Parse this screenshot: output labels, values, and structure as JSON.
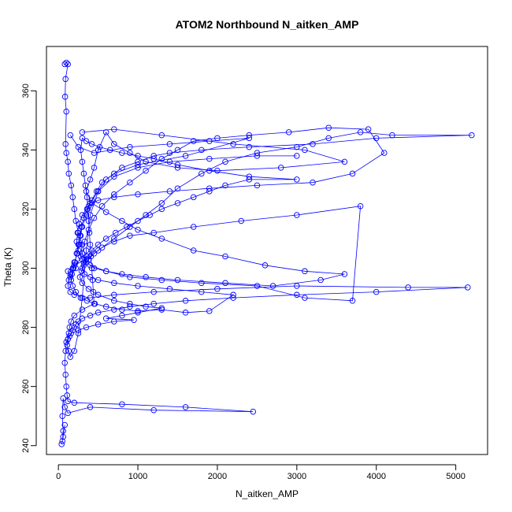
{
  "chart_data": {
    "type": "scatter",
    "title": "ATOM2 Northbound N_aitken_AMP",
    "xlabel": "N_aitken_AMP",
    "ylabel": "Theta (K)",
    "xlim": [
      -150,
      5400
    ],
    "ylim": [
      237,
      375
    ],
    "xticks": [
      0,
      1000,
      2000,
      3000,
      4000,
      5000
    ],
    "yticks": [
      240,
      260,
      280,
      300,
      320,
      340,
      360
    ],
    "grid": false,
    "legend": "none",
    "color": "#0000ff",
    "marker": "open-circle",
    "connected": true,
    "series": [
      {
        "points": [
          [
            80,
            369
          ],
          [
            100,
            369.5
          ],
          [
            120,
            369
          ],
          [
            90,
            364
          ],
          [
            85,
            358
          ],
          [
            100,
            353
          ],
          [
            90,
            342
          ],
          [
            100,
            339
          ],
          [
            120,
            336
          ],
          [
            130,
            332
          ],
          [
            160,
            328
          ],
          [
            180,
            324
          ],
          [
            200,
            320
          ],
          [
            220,
            316
          ],
          [
            250,
            312
          ],
          [
            300,
            308
          ],
          [
            280,
            304
          ],
          [
            220,
            300
          ],
          [
            150,
            297
          ],
          [
            120,
            299
          ],
          [
            200,
            301
          ],
          [
            350,
            303
          ],
          [
            500,
            306
          ],
          [
            700,
            310
          ],
          [
            900,
            314
          ],
          [
            1100,
            318
          ],
          [
            1300,
            322
          ],
          [
            1500,
            327
          ],
          [
            1800,
            332
          ],
          [
            2100,
            336
          ],
          [
            2500,
            339
          ],
          [
            3000,
            341
          ],
          [
            3400,
            344
          ],
          [
            3800,
            346
          ],
          [
            4200,
            345
          ],
          [
            5200,
            345
          ],
          [
            4000,
            344
          ],
          [
            3200,
            342
          ],
          [
            2400,
            341
          ],
          [
            1800,
            340
          ],
          [
            1400,
            339
          ],
          [
            1200,
            338
          ],
          [
            1000,
            336
          ],
          [
            800,
            334
          ],
          [
            600,
            330
          ],
          [
            500,
            326
          ],
          [
            400,
            322
          ],
          [
            350,
            318
          ],
          [
            300,
            314
          ],
          [
            280,
            311
          ],
          [
            260,
            308
          ],
          [
            240,
            305
          ],
          [
            200,
            302
          ],
          [
            180,
            300
          ],
          [
            150,
            298
          ],
          [
            130,
            296
          ],
          [
            120,
            294
          ],
          [
            150,
            292
          ],
          [
            200,
            291
          ],
          [
            400,
            290
          ],
          [
            700,
            291
          ],
          [
            1200,
            292
          ],
          [
            2000,
            293
          ],
          [
            3000,
            294
          ],
          [
            4400,
            293.5
          ],
          [
            5150,
            293.5
          ],
          [
            4000,
            292
          ],
          [
            3000,
            291
          ],
          [
            2200,
            290
          ],
          [
            1600,
            289
          ],
          [
            1200,
            288
          ],
          [
            900,
            287
          ],
          [
            700,
            286
          ],
          [
            500,
            285
          ],
          [
            400,
            284
          ],
          [
            300,
            283
          ],
          [
            250,
            282
          ],
          [
            220,
            281
          ],
          [
            200,
            280
          ],
          [
            180,
            279
          ],
          [
            160,
            278
          ],
          [
            140,
            277
          ],
          [
            120,
            276
          ],
          [
            100,
            275
          ],
          [
            90,
            272
          ],
          [
            80,
            268
          ],
          [
            90,
            264
          ],
          [
            100,
            260
          ],
          [
            110,
            257
          ],
          [
            120,
            255
          ],
          [
            200,
            254.5
          ],
          [
            800,
            254
          ],
          [
            1600,
            253
          ],
          [
            2450,
            251.5
          ],
          [
            1200,
            252
          ],
          [
            400,
            253
          ],
          [
            120,
            251
          ],
          [
            80,
            253
          ],
          [
            60,
            256
          ],
          [
            50,
            250
          ],
          [
            60,
            245
          ],
          [
            50,
            241.5
          ],
          [
            40,
            240.5
          ],
          [
            60,
            243
          ],
          [
            80,
            247
          ]
        ]
      },
      {
        "points": [
          [
            300,
            346
          ],
          [
            700,
            347
          ],
          [
            1300,
            345
          ],
          [
            2200,
            342
          ],
          [
            3100,
            340
          ],
          [
            3600,
            336
          ],
          [
            2800,
            334
          ],
          [
            2000,
            333
          ],
          [
            1500,
            334
          ],
          [
            1100,
            336
          ],
          [
            900,
            339
          ],
          [
            700,
            342
          ],
          [
            600,
            346
          ],
          [
            500,
            340
          ],
          [
            450,
            334
          ],
          [
            400,
            330
          ],
          [
            350,
            326
          ],
          [
            420,
            322
          ],
          [
            600,
            319
          ],
          [
            800,
            316
          ],
          [
            1000,
            313
          ],
          [
            1300,
            310
          ],
          [
            1700,
            306
          ],
          [
            2100,
            304
          ],
          [
            2600,
            301
          ],
          [
            3100,
            299
          ],
          [
            3600,
            298
          ],
          [
            3300,
            296
          ],
          [
            2700,
            294
          ],
          [
            2100,
            295
          ],
          [
            1500,
            296
          ],
          [
            1100,
            297
          ],
          [
            800,
            298
          ],
          [
            600,
            299
          ],
          [
            450,
            300
          ],
          [
            350,
            302
          ],
          [
            300,
            305
          ],
          [
            330,
            309
          ],
          [
            380,
            313
          ],
          [
            450,
            317
          ],
          [
            550,
            321
          ],
          [
            700,
            325
          ],
          [
            900,
            329
          ],
          [
            1100,
            333
          ],
          [
            1300,
            337
          ],
          [
            1500,
            340
          ],
          [
            1700,
            343
          ],
          [
            2000,
            344
          ],
          [
            2400,
            345
          ],
          [
            2900,
            346
          ],
          [
            3400,
            347.5
          ],
          [
            3900,
            347
          ],
          [
            4100,
            339
          ],
          [
            3700,
            332
          ],
          [
            3200,
            329
          ],
          [
            2500,
            328
          ],
          [
            1900,
            327
          ],
          [
            1400,
            326
          ],
          [
            1000,
            325
          ],
          [
            700,
            324
          ],
          [
            500,
            323
          ],
          [
            380,
            321
          ],
          [
            300,
            318
          ],
          [
            260,
            315
          ],
          [
            240,
            312
          ],
          [
            230,
            309
          ],
          [
            250,
            306
          ],
          [
            300,
            303
          ],
          [
            400,
            301
          ],
          [
            600,
            299
          ],
          [
            900,
            297
          ],
          [
            1300,
            296
          ],
          [
            1800,
            295
          ],
          [
            2500,
            294
          ],
          [
            3100,
            290
          ],
          [
            3700,
            289
          ],
          [
            3800,
            321
          ],
          [
            3000,
            318
          ],
          [
            2300,
            316
          ],
          [
            1700,
            314
          ],
          [
            1200,
            312
          ],
          [
            900,
            311
          ],
          [
            700,
            309
          ],
          [
            550,
            307
          ],
          [
            450,
            305
          ],
          [
            380,
            303
          ],
          [
            320,
            301
          ],
          [
            290,
            299
          ],
          [
            270,
            297
          ],
          [
            300,
            295
          ],
          [
            380,
            293
          ],
          [
            500,
            291
          ],
          [
            700,
            289
          ],
          [
            900,
            288
          ],
          [
            1100,
            287
          ],
          [
            1300,
            286.5
          ],
          [
            1000,
            285
          ],
          [
            800,
            284
          ],
          [
            600,
            283
          ],
          [
            950,
            282.5
          ],
          [
            700,
            282
          ],
          [
            500,
            281
          ],
          [
            350,
            280
          ],
          [
            250,
            279
          ]
        ]
      },
      {
        "points": [
          [
            150,
            345
          ],
          [
            250,
            341
          ],
          [
            450,
            339
          ],
          [
            900,
            341
          ],
          [
            1400,
            342
          ],
          [
            1900,
            343
          ],
          [
            2400,
            344
          ],
          [
            1600,
            338
          ],
          [
            1000,
            335
          ],
          [
            700,
            332
          ],
          [
            550,
            329
          ],
          [
            480,
            326
          ],
          [
            420,
            323
          ],
          [
            360,
            320
          ],
          [
            320,
            317
          ],
          [
            290,
            314
          ],
          [
            270,
            311
          ],
          [
            250,
            308
          ],
          [
            230,
            305
          ],
          [
            210,
            302
          ],
          [
            190,
            300
          ],
          [
            170,
            298
          ],
          [
            160,
            296
          ],
          [
            180,
            294
          ],
          [
            220,
            292
          ],
          [
            280,
            290
          ],
          [
            360,
            289
          ],
          [
            460,
            288
          ],
          [
            600,
            287
          ],
          [
            800,
            286
          ],
          [
            1000,
            285.5
          ],
          [
            1300,
            286
          ],
          [
            1600,
            285
          ],
          [
            1900,
            285.5
          ],
          [
            2200,
            291
          ],
          [
            1800,
            292
          ],
          [
            1400,
            293
          ],
          [
            1000,
            294
          ],
          [
            700,
            295
          ],
          [
            500,
            296
          ],
          [
            400,
            297
          ],
          [
            330,
            298
          ],
          [
            300,
            300
          ],
          [
            320,
            302
          ],
          [
            360,
            304
          ],
          [
            420,
            306
          ],
          [
            500,
            308
          ],
          [
            600,
            310
          ],
          [
            720,
            312
          ],
          [
            860,
            314
          ],
          [
            1000,
            316
          ],
          [
            1150,
            318
          ],
          [
            1300,
            320
          ],
          [
            1500,
            322
          ],
          [
            1700,
            324
          ],
          [
            1900,
            326
          ],
          [
            2100,
            328
          ],
          [
            2400,
            330
          ],
          [
            3000,
            330
          ],
          [
            2400,
            331
          ],
          [
            1900,
            333
          ],
          [
            1500,
            335
          ],
          [
            1200,
            337
          ],
          [
            1000,
            338
          ],
          [
            800,
            339
          ],
          [
            650,
            340
          ],
          [
            520,
            341
          ],
          [
            420,
            342
          ],
          [
            350,
            343
          ],
          [
            300,
            344
          ],
          [
            280,
            340
          ],
          [
            300,
            336
          ],
          [
            320,
            332
          ],
          [
            340,
            328
          ],
          [
            360,
            324
          ],
          [
            370,
            320
          ],
          [
            380,
            316
          ],
          [
            390,
            312
          ],
          [
            400,
            308
          ],
          [
            410,
            304
          ],
          [
            420,
            300
          ],
          [
            430,
            296
          ],
          [
            440,
            292
          ],
          [
            450,
            288
          ],
          [
            300,
            286
          ],
          [
            200,
            284
          ],
          [
            160,
            282
          ],
          [
            140,
            280
          ],
          [
            130,
            278
          ],
          [
            120,
            276
          ],
          [
            110,
            274
          ],
          [
            130,
            272
          ],
          [
            150,
            270
          ],
          [
            200,
            272
          ],
          [
            250,
            278
          ],
          [
            300,
            290
          ],
          [
            350,
            306
          ],
          [
            400,
            318
          ],
          [
            500,
            326
          ],
          [
            700,
            331
          ],
          [
            1000,
            334
          ],
          [
            1400,
            336
          ],
          [
            1900,
            337
          ],
          [
            2500,
            338
          ],
          [
            3000,
            338
          ]
        ]
      }
    ]
  }
}
